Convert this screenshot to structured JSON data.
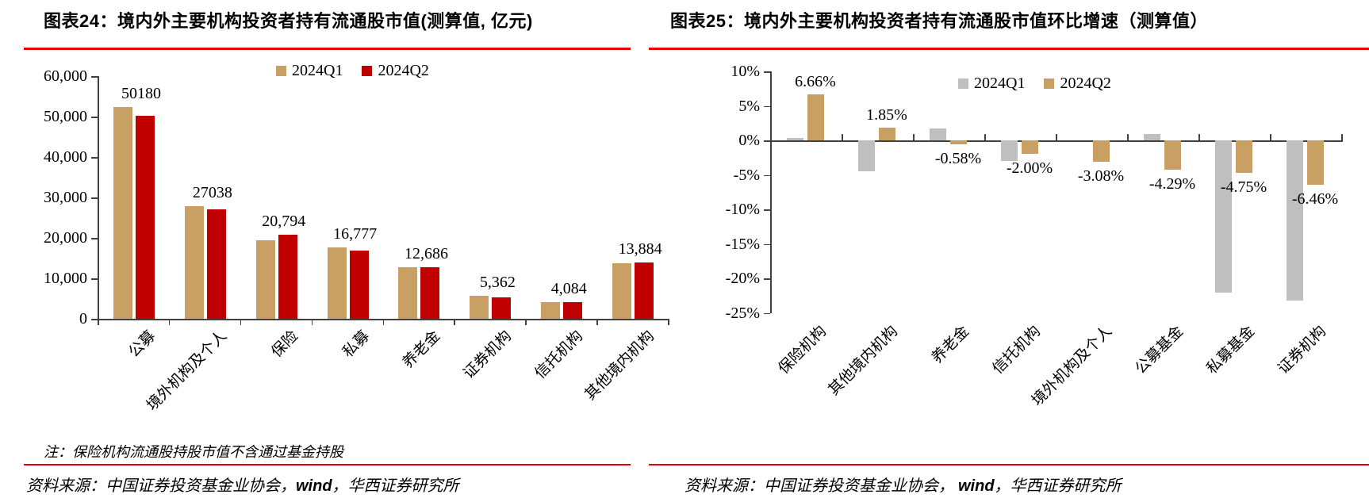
{
  "colors": {
    "red_rule": "#E60000",
    "bar_tan": "#C8A063",
    "bar_red": "#C00000",
    "bar_gray": "#BFBFBF",
    "bar_gold": "#C8A063",
    "axis": "#404040"
  },
  "notes": {
    "left_note": "注：保险机构流通股持股市值不含通过基金持股"
  },
  "sources": {
    "left": {
      "prefix": "资料来源：中国证券投资基金业协会，",
      "wind": "wind",
      "suffix": "，华西证券研究所"
    },
    "right": {
      "prefix": "资料来源：中国证券投资基金业协会， ",
      "wind": "wind",
      "suffix": "，华西证券研究所"
    }
  },
  "chart_data": [
    {
      "type": "bar",
      "title": "图表24：境内外主要机构投资者持有流通股市值(测算值, 亿元)",
      "categories": [
        "公募",
        "境外机构及个人",
        "保险",
        "私募",
        "养老金",
        "证券机构",
        "信托机构",
        "其他境内机构"
      ],
      "series": [
        {
          "name": "2024Q1",
          "color_key": "bar_tan",
          "values": [
            52400,
            27900,
            19500,
            17614,
            12760,
            5732,
            4167,
            13632
          ]
        },
        {
          "name": "2024Q2",
          "color_key": "bar_red",
          "values": [
            50180,
            27038,
            20794,
            16777,
            12686,
            5362,
            4084,
            13884
          ]
        }
      ],
      "value_labels": [
        "50180",
        "27038",
        "20,794",
        "16,777",
        "12,686",
        "5,362",
        "4,084",
        "13,884"
      ],
      "ylim": [
        0,
        60000
      ],
      "ytick_labels": [
        "60,000",
        "50,000",
        "40,000",
        "30,000",
        "20,000",
        "10,000",
        "0"
      ],
      "legend": [
        "2024Q1",
        "2024Q2"
      ],
      "legend_position": "top-center",
      "grid": false
    },
    {
      "type": "bar",
      "title": "图表25：境内外主要机构投资者持有流通股市值环比增速（测算值）",
      "categories": [
        "保险机构",
        "其他境内机构",
        "养老金",
        "信托机构",
        "境外机构及个人",
        "公募基金",
        "私募基金",
        "证券机构"
      ],
      "series": [
        {
          "name": "2024Q1",
          "color_key": "bar_gray",
          "values": [
            0.4,
            -4.5,
            1.7,
            -3.0,
            0.0,
            0.9,
            -22.1,
            -23.2
          ]
        },
        {
          "name": "2024Q2",
          "color_key": "bar_gold",
          "values": [
            6.66,
            1.85,
            -0.58,
            -2.0,
            -3.08,
            -4.29,
            -4.75,
            -6.46
          ]
        }
      ],
      "value_labels": [
        "6.66%",
        "1.85%",
        "-0.58%",
        "-2.00%",
        "-3.08%",
        "-4.29%",
        "-4.75%",
        "-6.46%"
      ],
      "ylim": [
        -25,
        10
      ],
      "ytick_labels": [
        "10%",
        "5%",
        "0%",
        "-5%",
        "-10%",
        "-15%",
        "-20%",
        "-25%"
      ],
      "legend": [
        "2024Q1",
        "2024Q2"
      ],
      "legend_position": "top-right",
      "unit": "%",
      "grid": false
    }
  ]
}
